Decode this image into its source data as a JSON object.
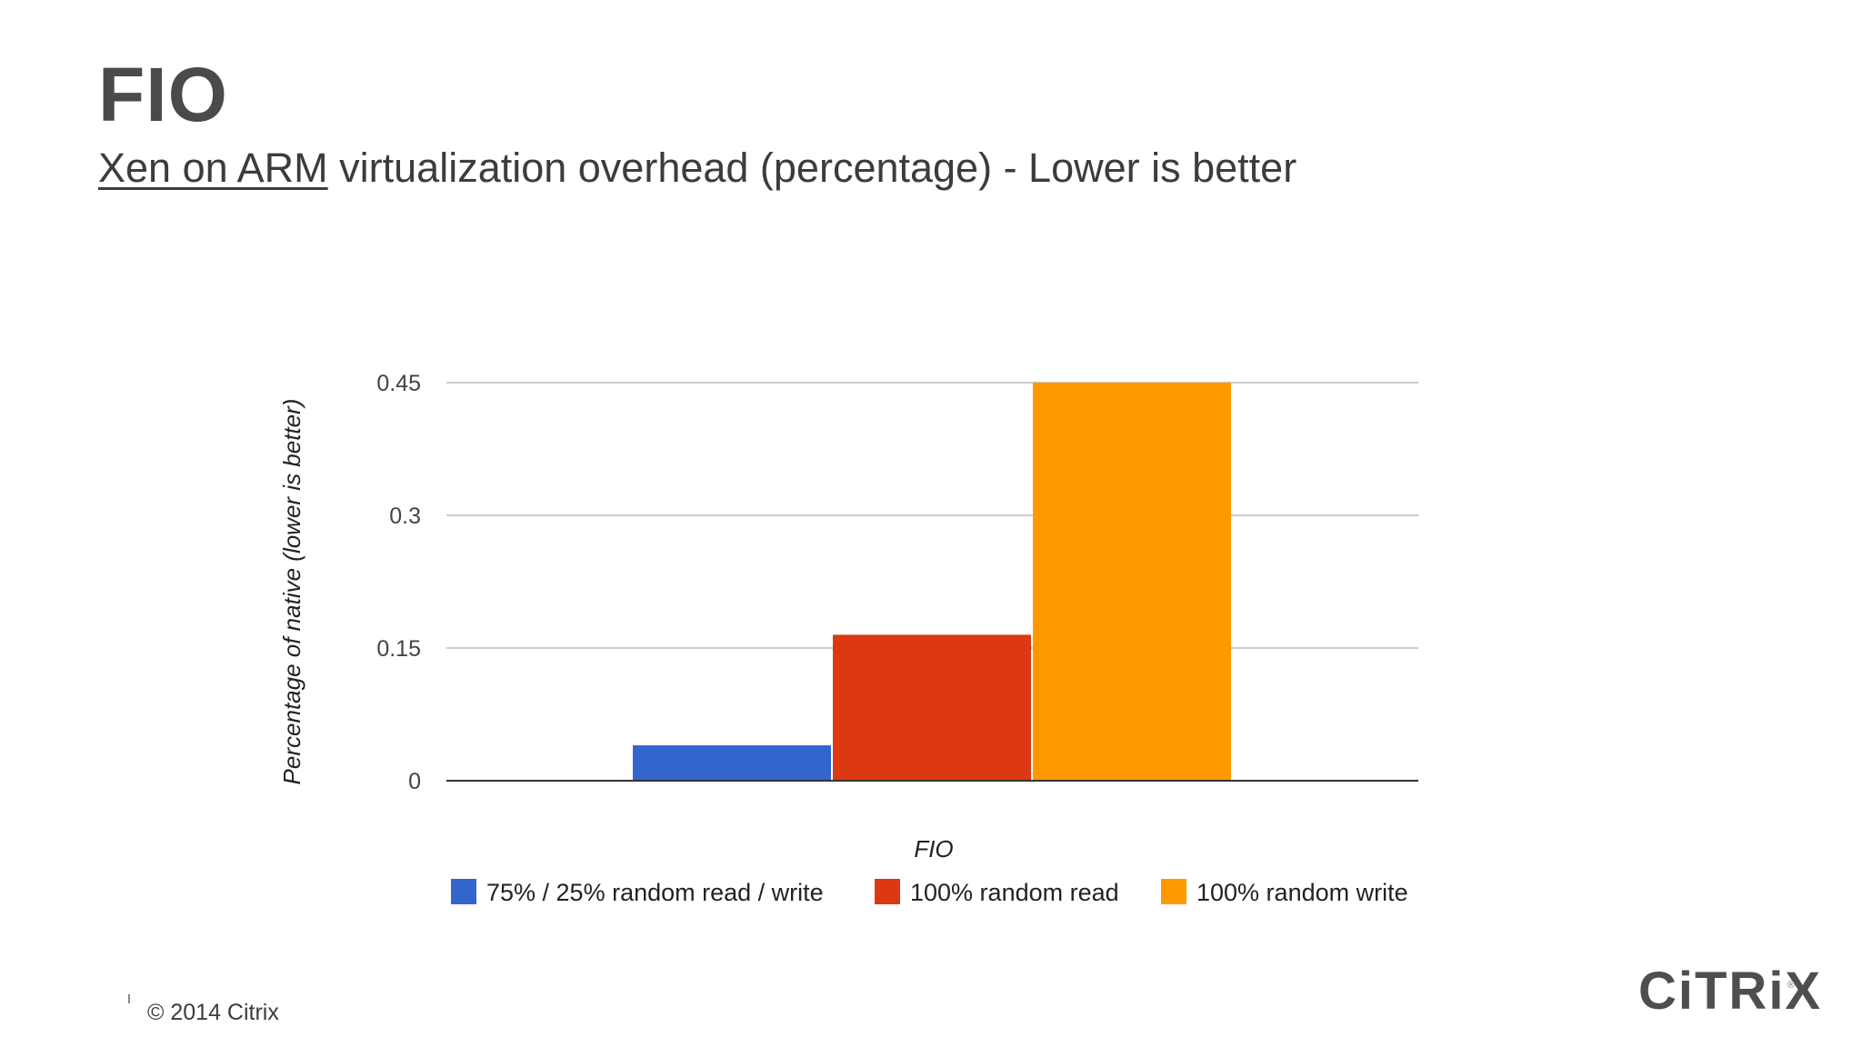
{
  "slide": {
    "title": "FIO",
    "subtitle_link": "Xen on ARM",
    "subtitle_rest": " virtualization overhead (percentage) - Lower is better",
    "copyright": "© 2014 Citrix",
    "logo_text": "CiTRiX",
    "logo_mark": "®"
  },
  "chart_data": {
    "type": "bar",
    "title": "",
    "xlabel": "FIO",
    "ylabel": "Percentage of native (lower is better)",
    "ylim": [
      0,
      0.45
    ],
    "yticks": [
      0,
      0.15,
      0.3,
      0.45
    ],
    "ytick_labels": [
      "0",
      "0.15",
      "0.3",
      "0.45"
    ],
    "grid": true,
    "legend_position": "bottom",
    "categories": [
      "FIO"
    ],
    "series": [
      {
        "name": "75% / 25% random read / write",
        "values": [
          0.04
        ],
        "color": "#3366cc"
      },
      {
        "name": "100% random read",
        "values": [
          0.165
        ],
        "color": "#dc3912"
      },
      {
        "name": "100% random write",
        "values": [
          0.45
        ],
        "color": "#ff9900"
      }
    ]
  }
}
